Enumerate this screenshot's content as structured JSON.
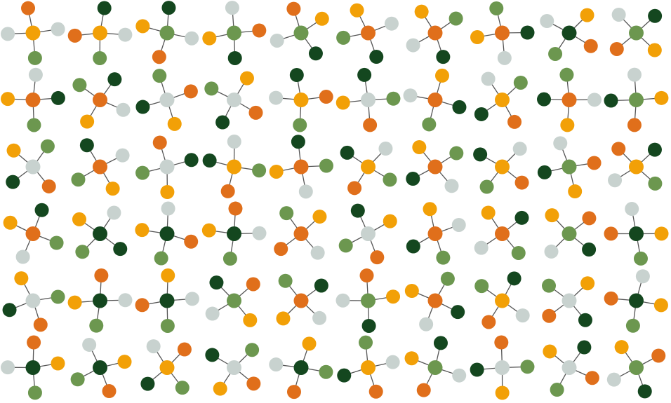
{
  "palette": {
    "orange": "#e06f1b",
    "yellow": "#f2a007",
    "gray": "#c8d2cf",
    "darkGreen": "#14471f",
    "lightGreen": "#6c974f"
  },
  "grid": {
    "columns": 10,
    "rows": 6
  },
  "molecules": [
    [
      "yellow",
      "gray",
      "orange",
      "gray",
      "lightGreen"
    ],
    [
      "yellow",
      "orange",
      "darkGreen",
      "gray",
      "lightGreen"
    ],
    [
      "lightGreen",
      "orange",
      "yellow",
      "darkGreen",
      "gray"
    ],
    [
      "lightGreen",
      "darkGreen",
      "yellow",
      "gray",
      "orange"
    ],
    [
      "lightGreen",
      "darkGreen",
      "gray",
      "orange",
      "yellow"
    ],
    [
      "orange",
      "lightGreen",
      "yellow",
      "gray",
      "darkGreen"
    ],
    [
      "orange",
      "yellow",
      "lightGreen",
      "darkGreen",
      "gray"
    ],
    [
      "orange",
      "gray",
      "yellow",
      "lightGreen",
      "darkGreen"
    ],
    [
      "darkGreen",
      "lightGreen",
      "gray",
      "yellow",
      "orange"
    ],
    [
      "lightGreen",
      "darkGreen",
      "yellow",
      "orange",
      "gray"
    ],
    [
      "orange",
      "gray",
      "darkGreen",
      "lightGreen",
      "yellow"
    ],
    [
      "orange",
      "gray",
      "yellow",
      "lightGreen",
      "darkGreen"
    ],
    [
      "gray",
      "orange",
      "yellow",
      "darkGreen",
      "lightGreen"
    ],
    [
      "gray",
      "yellow",
      "orange",
      "darkGreen",
      "lightGreen"
    ],
    [
      "yellow",
      "darkGreen",
      "orange",
      "lightGreen",
      "gray"
    ],
    [
      "gray",
      "lightGreen",
      "orange",
      "yellow",
      "darkGreen"
    ],
    [
      "orange",
      "gray",
      "yellow",
      "darkGreen",
      "lightGreen"
    ],
    [
      "yellow",
      "darkGreen",
      "gray",
      "lightGreen",
      "orange"
    ],
    [
      "orange",
      "gray",
      "yellow",
      "darkGreen",
      "lightGreen"
    ],
    [
      "lightGreen",
      "yellow",
      "orange",
      "darkGreen",
      "gray"
    ],
    [
      "gray",
      "orange",
      "darkGreen",
      "yellow",
      "lightGreen"
    ],
    [
      "orange",
      "yellow",
      "lightGreen",
      "darkGreen",
      "gray"
    ],
    [
      "gray",
      "yellow",
      "lightGreen",
      "orange",
      "darkGreen"
    ],
    [
      "yellow",
      "lightGreen",
      "orange",
      "darkGreen",
      "gray"
    ],
    [
      "orange",
      "yellow",
      "darkGreen",
      "lightGreen",
      "gray"
    ],
    [
      "yellow",
      "orange",
      "darkGreen",
      "gray",
      "lightGreen"
    ],
    [
      "orange",
      "gray",
      "darkGreen",
      "yellow",
      "lightGreen"
    ],
    [
      "yellow",
      "orange",
      "lightGreen",
      "darkGreen",
      "gray"
    ],
    [
      "lightGreen",
      "darkGreen",
      "gray",
      "orange",
      "yellow"
    ],
    [
      "yellow",
      "orange",
      "darkGreen",
      "lightGreen",
      "gray"
    ],
    [
      "orange",
      "lightGreen",
      "gray",
      "yellow",
      "darkGreen"
    ],
    [
      "darkGreen",
      "yellow",
      "gray",
      "darkGreen",
      "lightGreen"
    ],
    [
      "darkGreen",
      "yellow",
      "gray",
      "orange",
      "lightGreen"
    ],
    [
      "darkGreen",
      "yellow",
      "orange",
      "gray",
      "lightGreen"
    ],
    [
      "orange",
      "yellow",
      "gray",
      "orange",
      "lightGreen"
    ],
    [
      "gray",
      "yellow",
      "orange",
      "lightGreen",
      "darkGreen"
    ],
    [
      "orange",
      "darkGreen",
      "yellow",
      "gray",
      "lightGreen"
    ],
    [
      "orange",
      "gray",
      "yellow",
      "darkGreen",
      "lightGreen"
    ],
    [
      "lightGreen",
      "orange",
      "darkGreen",
      "gray",
      "yellow"
    ],
    [
      "darkGreen",
      "yellow",
      "lightGreen",
      "orange",
      "gray"
    ],
    [
      "gray",
      "orange",
      "darkGreen",
      "yellow",
      "lightGreen"
    ],
    [
      "darkGreen",
      "yellow",
      "orange",
      "gray",
      "lightGreen"
    ],
    [
      "darkGreen",
      "lightGreen",
      "orange",
      "yellow",
      "gray"
    ],
    [
      "lightGreen",
      "gray",
      "darkGreen",
      "orange",
      "yellow"
    ],
    [
      "orange",
      "darkGreen",
      "gray",
      "yellow",
      "lightGreen"
    ],
    [
      "lightGreen",
      "darkGreen",
      "gray",
      "orange",
      "yellow"
    ],
    [
      "orange",
      "darkGreen",
      "gray",
      "yellow",
      "lightGreen"
    ],
    [
      "yellow",
      "gray",
      "orange",
      "lightGreen",
      "darkGreen"
    ],
    [
      "gray",
      "darkGreen",
      "orange",
      "lightGreen",
      "yellow"
    ],
    [
      "darkGreen",
      "lightGreen",
      "orange",
      "gray",
      "yellow"
    ],
    [
      "darkGreen",
      "lightGreen",
      "gray",
      "orange",
      "yellow"
    ],
    [
      "darkGreen",
      "yellow",
      "orange",
      "lightGreen",
      "gray"
    ],
    [
      "yellow",
      "lightGreen",
      "darkGreen",
      "gray",
      "orange"
    ],
    [
      "gray",
      "yellow",
      "darkGreen",
      "lightGreen",
      "orange"
    ],
    [
      "darkGreen",
      "yellow",
      "lightGreen",
      "orange",
      "gray"
    ],
    [
      "yellow",
      "lightGreen",
      "gray",
      "orange",
      "darkGreen"
    ],
    [
      "lightGreen",
      "yellow",
      "darkGreen",
      "gray",
      "orange"
    ],
    [
      "gray",
      "orange",
      "lightGreen",
      "yellow",
      "darkGreen"
    ],
    [
      "gray",
      "orange",
      "lightGreen",
      "yellow",
      "darkGreen"
    ],
    [
      "lightGreen",
      "orange",
      "darkGreen",
      "gray",
      "yellow"
    ]
  ]
}
